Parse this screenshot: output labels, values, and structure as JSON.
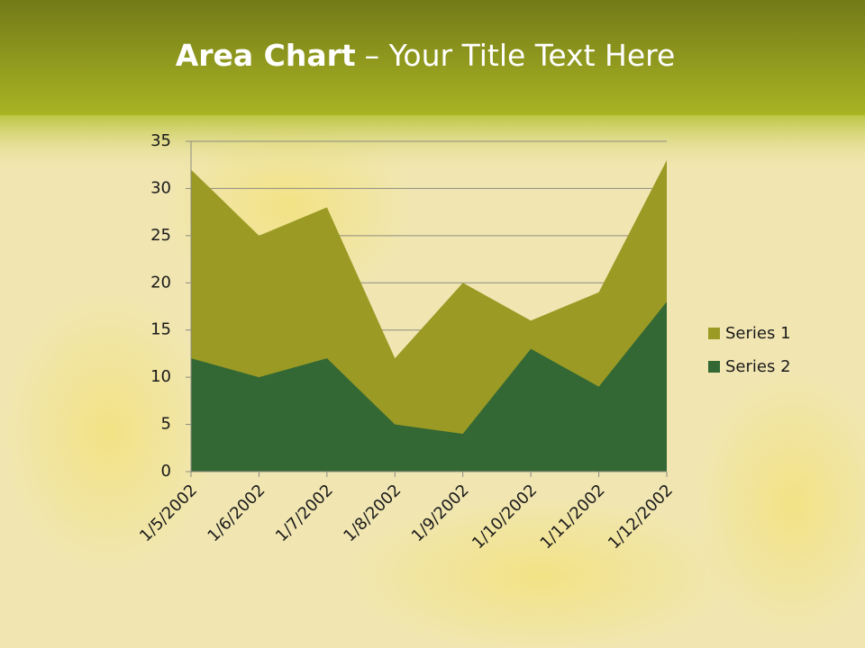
{
  "chart_data": {
    "type": "area",
    "title_parts": [
      "Area Chart",
      "– Your Title Text Here"
    ],
    "categories": [
      "1/5/2002",
      "1/6/2002",
      "1/7/2002",
      "1/8/2002",
      "1/9/2002",
      "1/10/2002",
      "1/11/2002",
      "1/12/2002"
    ],
    "series": [
      {
        "name": "Series 1",
        "color": "#9a9a24",
        "values": [
          32,
          25,
          28,
          12,
          20,
          16,
          19,
          33
        ]
      },
      {
        "name": "Series 2",
        "color": "#336835",
        "values": [
          12,
          10,
          12,
          5,
          4,
          13,
          9,
          18
        ]
      }
    ],
    "ylim": [
      0,
      35
    ],
    "yticks": [
      0,
      5,
      10,
      15,
      20,
      25,
      30,
      35
    ],
    "grid": true,
    "legend": "right"
  }
}
